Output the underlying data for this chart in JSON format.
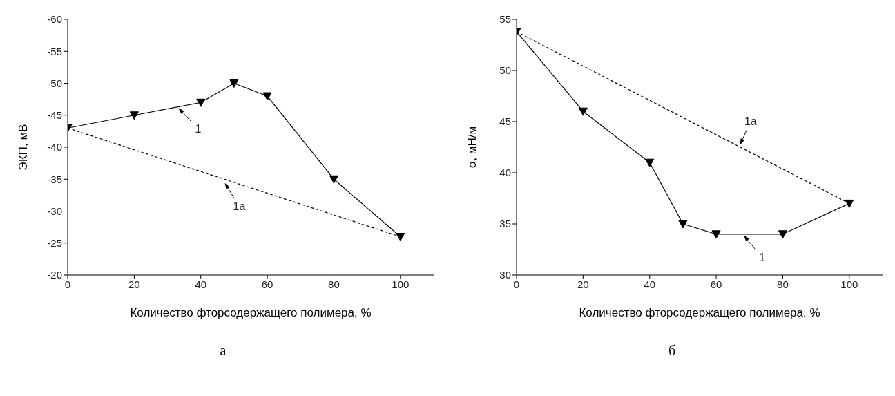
{
  "chart_data": [
    {
      "type": "line",
      "title": "а",
      "xlabel": "Количество фторсодержащего полимера, %",
      "ylabel": "ЭКП, мВ",
      "xlim": [
        0,
        110
      ],
      "xticks": [
        0,
        20,
        40,
        60,
        80,
        100
      ],
      "ylim": [
        -20,
        -60
      ],
      "yticks": [
        -60,
        -55,
        -50,
        -45,
        -40,
        -35,
        -30,
        -25,
        -20
      ],
      "grid": false,
      "legend": false,
      "series": [
        {
          "color": "#000000",
          "x": [
            0,
            20,
            40,
            50,
            60,
            80,
            100
          ],
          "values": [
            -43,
            -45,
            -47,
            -50,
            -48,
            -35,
            -26
          ],
          "marker": "triangle",
          "line_style": "solid"
        },
        {
          "color": "#000000",
          "x": [
            0,
            100
          ],
          "values": [
            -43,
            -26
          ],
          "marker": "none",
          "line_style": "dashed"
        }
      ],
      "annotations": [
        {
          "text": "1",
          "x": 33,
          "y": -46.3
        },
        {
          "text": "1а",
          "x": 47,
          "y": -34.6
        }
      ]
    },
    {
      "type": "line",
      "title": "б",
      "xlabel": "Количество фторсодержащего полимера, %",
      "ylabel": "σ, мН/м",
      "xlim": [
        0,
        110
      ],
      "xticks": [
        0,
        20,
        40,
        60,
        80,
        100
      ],
      "ylim": [
        30,
        55
      ],
      "yticks": [
        30,
        35,
        40,
        45,
        50,
        55
      ],
      "grid": false,
      "legend": false,
      "series": [
        {
          "color": "#000000",
          "x": [
            0,
            20,
            40,
            50,
            60,
            80,
            100
          ],
          "values": [
            53.8,
            46,
            41,
            35,
            34,
            34,
            37
          ],
          "marker": "triangle",
          "line_style": "solid"
        },
        {
          "color": "#000000",
          "x": [
            0,
            100
          ],
          "values": [
            53.8,
            37
          ],
          "marker": "none",
          "line_style": "dashed"
        }
      ],
      "annotations": [
        {
          "text": "1а",
          "x": 67,
          "y": 42.6
        },
        {
          "text": "1",
          "x": 68,
          "y": 34
        }
      ]
    }
  ]
}
